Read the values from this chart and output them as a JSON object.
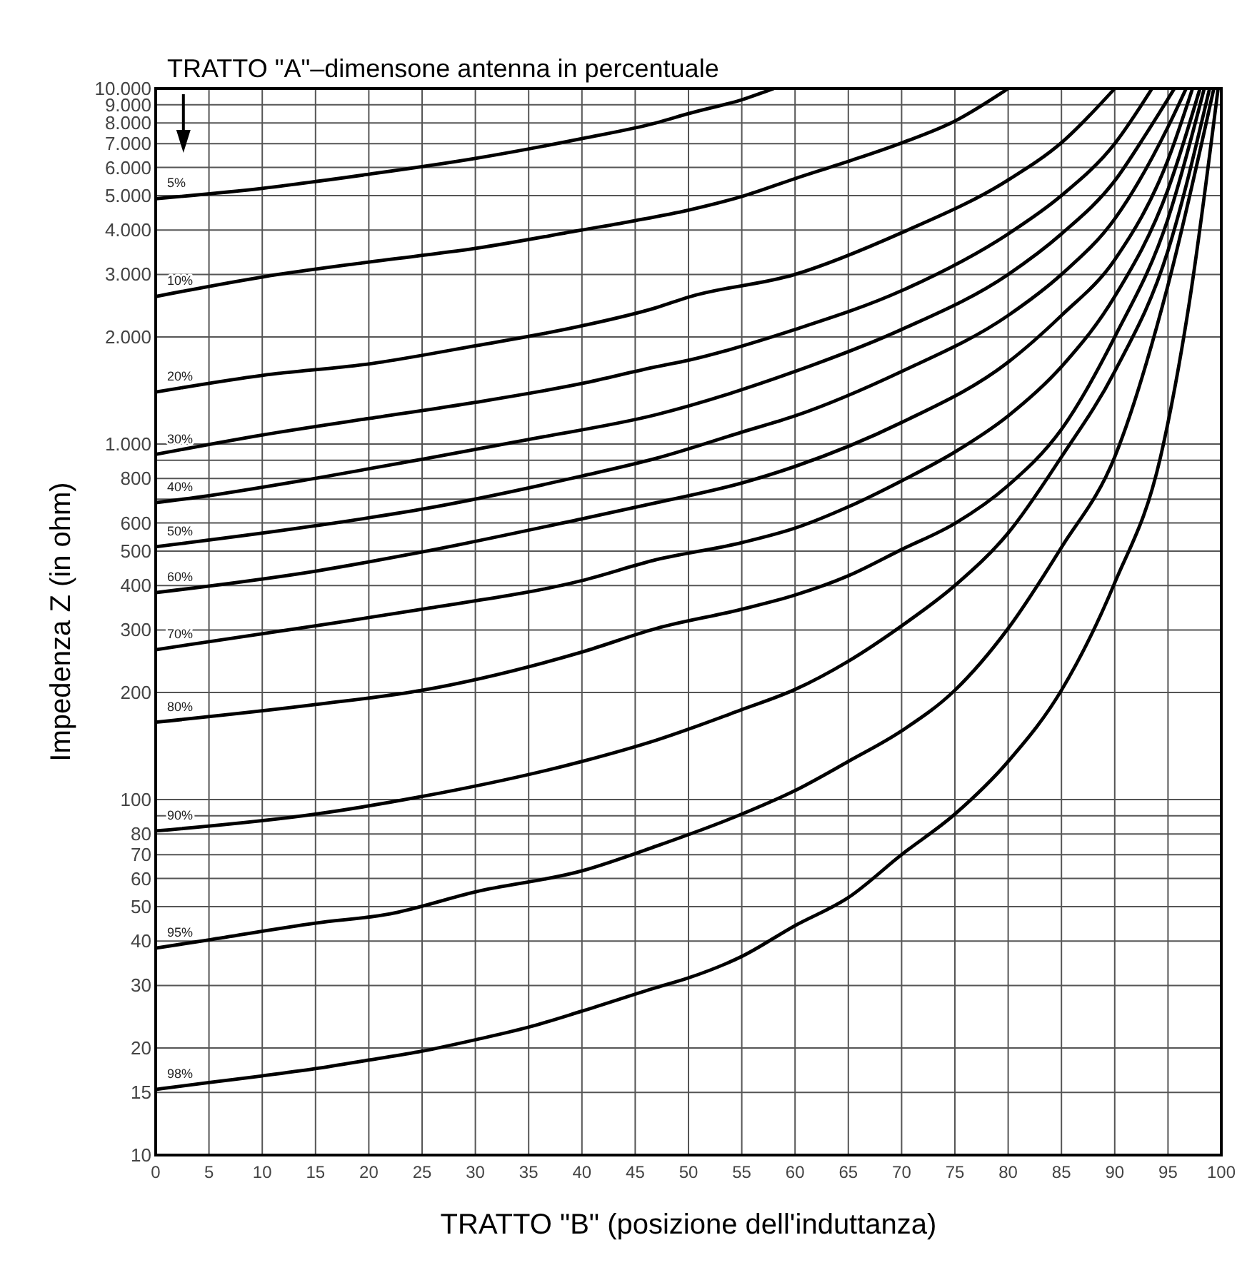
{
  "chart_data": {
    "type": "line",
    "title": "TRATTO \"A\"–dimensone antenna in percentuale",
    "xlabel": "TRATTO \"B\" (posizione dell'induttanza)",
    "ylabel": "Impedenza Z (in ohm)",
    "log": "y",
    "grid": true,
    "marker": "none",
    "line_style": "solid",
    "xlim": [
      0,
      100
    ],
    "ylim": [
      10,
      10000
    ],
    "xticks": [
      0,
      5,
      10,
      15,
      20,
      25,
      30,
      35,
      40,
      45,
      50,
      55,
      60,
      65,
      70,
      75,
      80,
      85,
      90,
      95,
      100
    ],
    "yticks": [
      10,
      15,
      20,
      30,
      40,
      50,
      60,
      70,
      80,
      {
        "value": 90,
        "label": null
      },
      100,
      200,
      300,
      400,
      500,
      600,
      {
        "value": 700,
        "label": null
      },
      800,
      {
        "value": 900,
        "label": null
      },
      {
        "value": 1000,
        "label": "1.000"
      },
      {
        "value": 2000,
        "label": "2.000"
      },
      {
        "value": 3000,
        "label": "3.000"
      },
      {
        "value": 4000,
        "label": "4.000"
      },
      {
        "value": 5000,
        "label": "5.000"
      },
      {
        "value": 6000,
        "label": "6.000"
      },
      {
        "value": 7000,
        "label": "7.000"
      },
      {
        "value": 8000,
        "label": "8.000"
      },
      {
        "value": 9000,
        "label": "9.000"
      },
      {
        "value": 10000,
        "label": "10.000"
      }
    ],
    "series": [
      {
        "name": "5%",
        "color": "#000000",
        "x": [
          0,
          10,
          20,
          30,
          40,
          47,
          50,
          55,
          58
        ],
        "values": [
          4900,
          5240,
          5740,
          6360,
          7230,
          8010,
          8500,
          9300,
          10000
        ]
      },
      {
        "name": "10%",
        "color": "#000000",
        "x": [
          0,
          10,
          20,
          30,
          40,
          45,
          50,
          55,
          60,
          65,
          70,
          75,
          80
        ],
        "values": [
          2600,
          2950,
          3250,
          3550,
          4000,
          4250,
          4550,
          4970,
          5580,
          6240,
          7030,
          8100,
          10000
        ]
      },
      {
        "name": "20%",
        "color": "#000000",
        "x": [
          0,
          10,
          20,
          30,
          40,
          47,
          50,
          60,
          70,
          80,
          85,
          90
        ],
        "values": [
          1400,
          1560,
          1680,
          1890,
          2150,
          2420,
          2590,
          3000,
          3930,
          5530,
          7040,
          10000
        ]
      },
      {
        "name": "30%",
        "color": "#000000",
        "x": [
          0,
          10,
          20,
          30,
          40,
          47,
          50,
          60,
          70,
          80,
          85,
          90,
          93.5
        ],
        "values": [
          935,
          1060,
          1180,
          1310,
          1480,
          1650,
          1720,
          2100,
          2700,
          3900,
          5000,
          7000,
          10000
        ]
      },
      {
        "name": "40%",
        "color": "#000000",
        "x": [
          0,
          5,
          15,
          25,
          35,
          47,
          60,
          70,
          80,
          85,
          90,
          93,
          95.6
        ],
        "values": [
          684,
          716,
          801,
          906,
          1030,
          1210,
          1600,
          2100,
          3000,
          3900,
          5500,
          7500,
          10000
        ]
      },
      {
        "name": "50%",
        "color": "#000000",
        "x": [
          0,
          15,
          25,
          40,
          47,
          55,
          60,
          70,
          80,
          85,
          90,
          95,
          96.7
        ],
        "values": [
          514,
          589,
          656,
          813,
          912,
          1080,
          1200,
          1600,
          2300,
          3000,
          4300,
          7800,
          10000
        ]
      },
      {
        "name": "60%",
        "color": "#000000",
        "x": [
          0,
          15,
          25,
          40,
          47,
          55,
          60,
          70,
          80,
          85,
          90,
          95,
          97.3
        ],
        "values": [
          382,
          439,
          497,
          616,
          684,
          777,
          865,
          1150,
          1700,
          2300,
          3300,
          6300,
          10000
        ]
      },
      {
        "name": "70%",
        "color": "#000000",
        "x": [
          0,
          15,
          25,
          40,
          47,
          55,
          60,
          65,
          70,
          75,
          80,
          85,
          90,
          95,
          98
        ],
        "values": [
          264,
          308,
          343,
          413,
          473,
          528,
          580,
          666,
          788,
          950,
          1200,
          1650,
          2600,
          5200,
          10000
        ]
      },
      {
        "name": "80%",
        "color": "#000000",
        "x": [
          0,
          15,
          25,
          40,
          47,
          55,
          60,
          65,
          70,
          75,
          80,
          85,
          90,
          95,
          98.4
        ],
        "values": [
          165,
          185,
          203,
          260,
          303,
          343,
          376,
          426,
          505,
          598,
          765,
          1100,
          2000,
          4300,
          10000
        ]
      },
      {
        "name": "90%",
        "color": "#000000",
        "x": [
          0,
          15,
          25,
          40,
          47,
          55,
          60,
          65,
          70,
          75,
          80,
          85,
          90,
          95,
          98.9
        ],
        "values": [
          81.6,
          91,
          102,
          128,
          147,
          179,
          204,
          245,
          308,
          400,
          562,
          920,
          1600,
          3500,
          10000
        ]
      },
      {
        "name": "95%",
        "color": "#000000",
        "x": [
          0,
          5,
          15,
          22,
          30,
          40,
          47,
          55,
          60,
          65,
          70,
          75,
          80,
          85,
          90,
          95,
          99.3
        ],
        "values": [
          38.2,
          40.3,
          44.9,
          47.7,
          55,
          63,
          74,
          91,
          106,
          128,
          156,
          203,
          303,
          512,
          920,
          2800,
          10000
        ]
      },
      {
        "name": "98%",
        "color": "#000000",
        "x": [
          0,
          5,
          10,
          15,
          20,
          25,
          30,
          35,
          40,
          47,
          50,
          55,
          60,
          65,
          70,
          75,
          80,
          85,
          90,
          94.3,
          97,
          99.7
        ],
        "values": [
          15.3,
          16.0,
          16.7,
          17.5,
          18.5,
          19.6,
          21.1,
          22.9,
          25.4,
          29.6,
          31.5,
          36.2,
          44.2,
          53,
          70,
          91,
          128,
          203,
          407,
          920,
          2500,
          10000
        ]
      }
    ]
  }
}
